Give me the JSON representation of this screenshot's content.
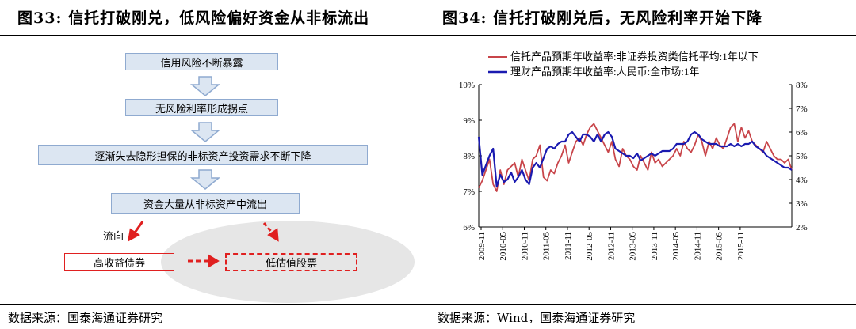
{
  "left_figure": {
    "number": "图33:",
    "title": "信托打破刚兑，低风险偏好资金从非标流出",
    "source": "数据来源：国泰海通证券研究",
    "flow_steps": [
      "信用风险不断暴露",
      "无风险利率形成拐点",
      "逐渐失去隐形担保的非标资产投资需求不断下降",
      "资金大量从非标资产中流出"
    ],
    "flow_label": "流向",
    "box_high_yield": "高收益债券",
    "box_low_valuation": "低估值股票",
    "colors": {
      "box_fill": "#dce6f2",
      "box_border": "#8faad0",
      "arrow": "#8faad0",
      "red": "#e02020",
      "ellipse": "#e6e6e6"
    }
  },
  "right_figure": {
    "number": "图34:",
    "title": "信托打破刚兑后，无风险利率开始下降",
    "source": "数据来源：Wind，国泰海通证券研究"
  },
  "chart_data": {
    "type": "line",
    "title": "",
    "legend_placement": "top",
    "grid": false,
    "x_ticks": [
      "2009-11",
      "2010-05",
      "2010-11",
      "2011-05",
      "2011-11",
      "2012-05",
      "2012-11",
      "2013-05",
      "2013-11",
      "2014-05",
      "2014-11",
      "2015-05",
      "2015-11"
    ],
    "y_left": {
      "min": 6,
      "max": 10,
      "ticks": [
        "6%",
        "7%",
        "8%",
        "9%",
        "10%"
      ]
    },
    "y_right": {
      "min": 2,
      "max": 8,
      "ticks": [
        "2%",
        "3%",
        "4%",
        "5%",
        "6%",
        "7%",
        "8%"
      ]
    },
    "series": [
      {
        "name": "信托产品预期年收益率:非证券投资类信托平均:1年以下",
        "axis": "left",
        "color": "#c8454a",
        "values": [
          7.1,
          7.3,
          7.6,
          7.9,
          7.2,
          7.0,
          7.6,
          7.2,
          7.6,
          7.7,
          7.8,
          7.4,
          7.9,
          7.6,
          7.3,
          7.9,
          8.0,
          8.3,
          7.4,
          7.3,
          7.6,
          7.5,
          7.8,
          8.0,
          8.3,
          7.8,
          8.1,
          8.4,
          8.5,
          8.3,
          8.6,
          8.8,
          8.9,
          8.7,
          8.5,
          8.3,
          8.1,
          8.4,
          7.9,
          7.7,
          8.2,
          8.0,
          7.9,
          7.7,
          7.6,
          8.0,
          7.8,
          7.6,
          8.1,
          7.8,
          7.9,
          7.7,
          7.8,
          7.9,
          8.0,
          8.2,
          8.0,
          8.4,
          8.2,
          8.1,
          8.3,
          8.6,
          8.4,
          8.0,
          8.4,
          8.2,
          8.5,
          8.3,
          8.2,
          8.5,
          8.8,
          8.9,
          8.4,
          8.8,
          8.5,
          8.7,
          8.4,
          8.3,
          8.2,
          8.1,
          8.4,
          8.2,
          8.0,
          7.9,
          7.9,
          7.8,
          7.9,
          7.6
        ]
      },
      {
        "name": "理财产品预期年收益率:人民币:全市场:1年",
        "axis": "right",
        "color": "#1a1ab0",
        "values": [
          5.8,
          4.2,
          4.6,
          5.0,
          5.3,
          3.7,
          4.2,
          3.9,
          4.0,
          4.3,
          3.9,
          4.1,
          4.4,
          4.0,
          3.8,
          4.5,
          4.7,
          4.5,
          4.9,
          5.3,
          5.4,
          5.3,
          5.5,
          5.6,
          5.6,
          5.9,
          6.0,
          5.8,
          5.6,
          5.9,
          5.9,
          5.8,
          5.6,
          5.9,
          5.6,
          5.9,
          6.0,
          5.8,
          5.3,
          5.2,
          5.1,
          5.0,
          5.0,
          4.9,
          5.1,
          4.8,
          4.9,
          5.0,
          5.1,
          5.0,
          5.1,
          5.2,
          5.2,
          5.2,
          5.3,
          5.5,
          5.5,
          5.5,
          5.6,
          5.9,
          6.0,
          5.9,
          5.7,
          5.6,
          5.5,
          5.5,
          5.5,
          5.4,
          5.4,
          5.4,
          5.5,
          5.4,
          5.5,
          5.4,
          5.5,
          5.5,
          5.6,
          5.4,
          5.3,
          5.2,
          5.0,
          4.9,
          4.8,
          4.7,
          4.6,
          4.5,
          4.5,
          4.4
        ]
      }
    ]
  }
}
